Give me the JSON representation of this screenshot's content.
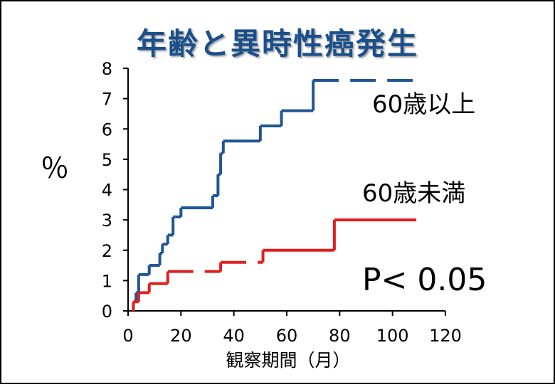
{
  "chart_data": {
    "type": "line",
    "title": "年齢と異時性癌発生",
    "xlabel": "観察期間（月）",
    "ylabel": "％",
    "xlim": [
      0,
      120
    ],
    "ylim": [
      0,
      8
    ],
    "x_ticks": [
      0,
      20,
      40,
      60,
      80,
      100,
      120
    ],
    "y_ticks": [
      0,
      1,
      2,
      3,
      4,
      5,
      6,
      7,
      8
    ],
    "grid": false,
    "series": [
      {
        "name": "60歳以上",
        "color": "#1f5596",
        "step": true,
        "x": [
          2,
          3,
          4,
          8,
          12,
          13,
          15,
          17,
          18,
          20,
          32,
          34,
          35,
          36,
          50,
          58,
          70,
          109
        ],
        "y": [
          0.3,
          0.6,
          1.2,
          1.5,
          1.9,
          2.2,
          2.5,
          3.1,
          3.1,
          3.4,
          3.8,
          4.5,
          5.2,
          5.6,
          6.1,
          6.6,
          7.6,
          7.6
        ],
        "dashed_from_x": 70
      },
      {
        "name": "60歳未満",
        "color": "#e01e1e",
        "step": true,
        "x": [
          2,
          4,
          8,
          15,
          35,
          51,
          78,
          109
        ],
        "y": [
          0.3,
          0.6,
          0.9,
          1.3,
          1.6,
          2.0,
          3.0,
          3.0
        ],
        "dashed_x_range": [
          15,
          51
        ]
      }
    ],
    "annotations": [
      "P< 0.05"
    ]
  },
  "colors": {
    "title": "#1a4f8b",
    "axis": "#000000",
    "frame": "#000000"
  }
}
